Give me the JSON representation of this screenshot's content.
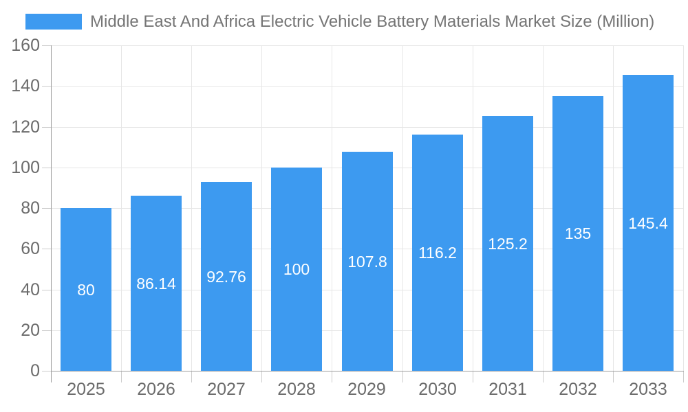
{
  "chart_data": {
    "type": "bar",
    "title": "Middle East And Africa Electric Vehicle Battery Materials Market Size (Million)",
    "legend_position": "top",
    "categories": [
      "2025",
      "2026",
      "2027",
      "2028",
      "2029",
      "2030",
      "2031",
      "2032",
      "2033"
    ],
    "values": [
      80,
      86.14,
      92.76,
      100,
      107.8,
      116.2,
      125.2,
      135,
      145.4
    ],
    "bar_labels": [
      "80",
      "86.14",
      "92.76",
      "100",
      "107.8",
      "116.2",
      "125.2",
      "135",
      "145.4"
    ],
    "xlabel": "",
    "ylabel": "",
    "ylim": [
      0,
      160
    ],
    "yticks": [
      0,
      20,
      40,
      60,
      80,
      100,
      120,
      140,
      160
    ],
    "grid": true,
    "colors": {
      "bar": "#3d9af0",
      "bar_label_text": "#ffffff",
      "axis_text": "#6b6b6b",
      "title_text": "#757575",
      "gridline": "#e6e6e6",
      "axis_line": "#9e9e9e",
      "tick_mark": "#cccccc",
      "background": "#ffffff"
    }
  }
}
